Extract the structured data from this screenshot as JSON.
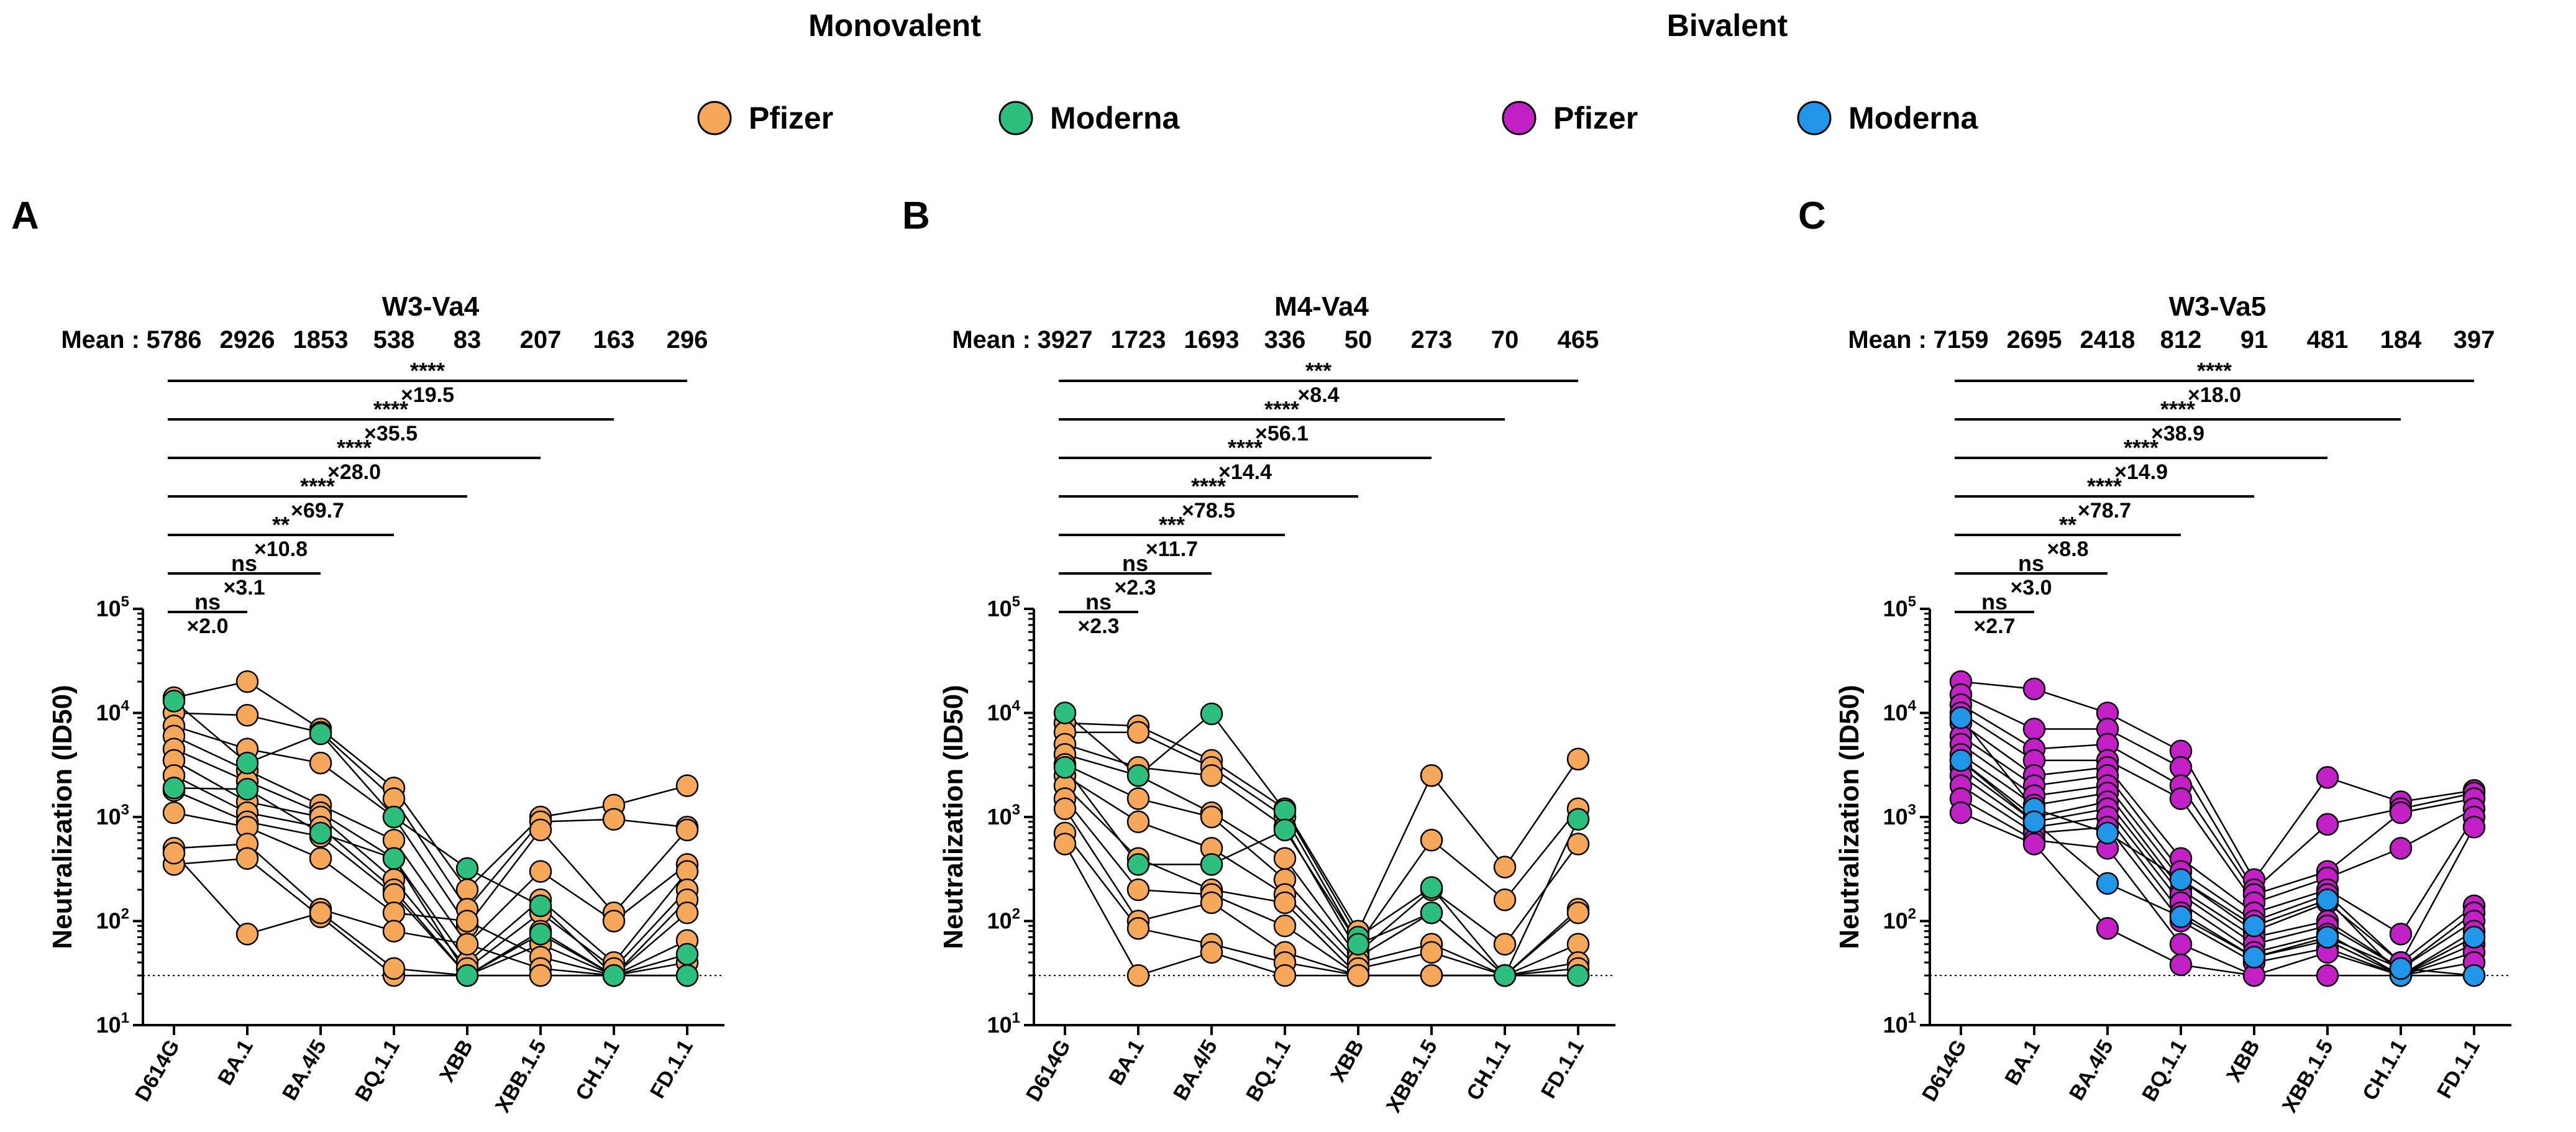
{
  "figure": {
    "group_headers": [
      "Monovalent",
      "Bivalent"
    ],
    "legend": [
      {
        "label": "Pfizer",
        "group": "Monovalent",
        "color": "#f6a85a"
      },
      {
        "label": "Moderna",
        "group": "Monovalent",
        "color": "#2dbf7d"
      },
      {
        "label": "Pfizer",
        "group": "Bivalent",
        "color": "#c21fc6"
      },
      {
        "label": "Moderna",
        "group": "Bivalent",
        "color": "#2196e8"
      }
    ],
    "mean_label": "Mean :"
  },
  "chart_data": [
    {
      "type": "scatter",
      "panel": "A",
      "title": "W3-Va4",
      "ylabel": "Neutralization (ID50)",
      "yscale": "log",
      "ylim": [
        10,
        100000
      ],
      "yticks": [
        "10^1",
        "10^2",
        "10^3",
        "10^4",
        "10^5"
      ],
      "threshold": 30,
      "categories": [
        "D614G",
        "BA.1",
        "BA.4/5",
        "BQ.1.1",
        "XBB",
        "XBB.1.5",
        "CH.1.1",
        "FD.1.1"
      ],
      "means": [
        "5786",
        "2926",
        "1853",
        "538",
        "83",
        "207",
        "163",
        "296"
      ],
      "comparisons": [
        {
          "to": "BA.1",
          "sig": "ns",
          "fold": "×2.0"
        },
        {
          "to": "BA.4/5",
          "sig": "ns",
          "fold": "×3.1"
        },
        {
          "to": "BQ.1.1",
          "sig": "**",
          "fold": "×10.8"
        },
        {
          "to": "XBB",
          "sig": "****",
          "fold": "×69.7"
        },
        {
          "to": "XBB.1.5",
          "sig": "****",
          "fold": "×28.0"
        },
        {
          "to": "CH.1.1",
          "sig": "****",
          "fold": "×35.5"
        },
        {
          "to": "FD.1.1",
          "sig": "****",
          "fold": "×19.5"
        }
      ],
      "series": [
        {
          "name": "Pfizer",
          "color": "#f6a85a",
          "subjects": [
            [
              14000,
              20000,
              7000,
              1900,
              200,
              1000,
              1300,
              2000
            ],
            [
              10000,
              9500,
              6500,
              1500,
              130,
              900,
              950,
              800
            ],
            [
              7500,
              4500,
              3300,
              1000,
              90,
              750,
              120,
              750
            ],
            [
              6000,
              2800,
              1300,
              600,
              60,
              300,
              100,
              350
            ],
            [
              4500,
              2200,
              1100,
              400,
              40,
              160,
              40,
              300
            ],
            [
              3500,
              1400,
              1000,
              250,
              35,
              120,
              35,
              200
            ],
            [
              2500,
              1100,
              800,
              200,
              30,
              80,
              30,
              160
            ],
            [
              1800,
              900,
              650,
              180,
              30,
              60,
              30,
              120
            ],
            [
              1100,
              800,
              400,
              120,
              100,
              45,
              30,
              65
            ],
            [
              500,
              550,
              130,
              80,
              60,
              35,
              30,
              40
            ],
            [
              350,
              400,
              110,
              30,
              30,
              30,
              30,
              30
            ],
            [
              450,
              75,
              120,
              35,
              30,
              30,
              30,
              30
            ]
          ]
        },
        {
          "name": "Moderna",
          "color": "#2dbf7d",
          "subjects": [
            [
              13000,
              3300,
              6300,
              1000,
              320,
              140,
              30,
              48
            ],
            [
              1900,
              1850,
              700,
              400,
              30,
              75,
              30,
              30
            ]
          ]
        }
      ]
    },
    {
      "type": "scatter",
      "panel": "B",
      "title": "M4-Va4",
      "ylabel": "Neutralization (ID50)",
      "yscale": "log",
      "ylim": [
        10,
        100000
      ],
      "yticks": [
        "10^1",
        "10^2",
        "10^3",
        "10^4",
        "10^5"
      ],
      "threshold": 30,
      "categories": [
        "D614G",
        "BA.1",
        "BA.4/5",
        "BQ.1.1",
        "XBB",
        "XBB.1.5",
        "CH.1.1",
        "FD.1.1"
      ],
      "means": [
        "3927",
        "1723",
        "1693",
        "336",
        "50",
        "273",
        "70",
        "465"
      ],
      "comparisons": [
        {
          "to": "BA.1",
          "sig": "ns",
          "fold": "×2.3"
        },
        {
          "to": "BA.4/5",
          "sig": "ns",
          "fold": "×2.3"
        },
        {
          "to": "BQ.1.1",
          "sig": "***",
          "fold": "×11.7"
        },
        {
          "to": "XBB",
          "sig": "****",
          "fold": "×78.5"
        },
        {
          "to": "XBB.1.5",
          "sig": "****",
          "fold": "×14.4"
        },
        {
          "to": "CH.1.1",
          "sig": "****",
          "fold": "×56.1"
        },
        {
          "to": "FD.1.1",
          "sig": "***",
          "fold": "×8.4"
        }
      ],
      "series": [
        {
          "name": "Pfizer",
          "color": "#f6a85a",
          "subjects": [
            [
              8000,
              7500,
              3500,
              1200,
              80,
              2500,
              330,
              3600
            ],
            [
              6500,
              6500,
              3000,
              1000,
              60,
              600,
              160,
              1200
            ],
            [
              5000,
              3000,
              2500,
              800,
              50,
              200,
              60,
              550
            ],
            [
              4000,
              2500,
              1100,
              400,
              45,
              120,
              30,
              130
            ],
            [
              3200,
              1500,
              1000,
              250,
              40,
              60,
              30,
              120
            ],
            [
              2500,
              900,
              500,
              180,
              35,
              50,
              30,
              60
            ],
            [
              2000,
              400,
              200,
              150,
              30,
              30,
              30,
              40
            ],
            [
              1500,
              200,
              180,
              90,
              30,
              30,
              30,
              35
            ],
            [
              1200,
              100,
              150,
              50,
              30,
              30,
              30,
              30
            ],
            [
              700,
              85,
              60,
              40,
              30,
              30,
              30,
              30
            ],
            [
              550,
              30,
              50,
              30,
              30,
              30,
              30,
              30
            ]
          ]
        },
        {
          "name": "Moderna",
          "color": "#2dbf7d",
          "subjects": [
            [
              10000,
              2500,
              9800,
              1150,
              70,
              210,
              30,
              950
            ],
            [
              3000,
              350,
              350,
              750,
              60,
              120,
              30,
              30
            ]
          ]
        }
      ]
    },
    {
      "type": "scatter",
      "panel": "C",
      "title": "W3-Va5",
      "ylabel": "Neutralization (ID50)",
      "yscale": "log",
      "ylim": [
        10,
        100000
      ],
      "yticks": [
        "10^1",
        "10^2",
        "10^3",
        "10^4",
        "10^5"
      ],
      "threshold": 30,
      "categories": [
        "D614G",
        "BA.1",
        "BA.4/5",
        "BQ.1.1",
        "XBB",
        "XBB.1.5",
        "CH.1.1",
        "FD.1.1"
      ],
      "means": [
        "7159",
        "2695",
        "2418",
        "812",
        "91",
        "481",
        "184",
        "397"
      ],
      "comparisons": [
        {
          "to": "BA.1",
          "sig": "ns",
          "fold": "×2.7"
        },
        {
          "to": "BA.4/5",
          "sig": "ns",
          "fold": "×3.0"
        },
        {
          "to": "BQ.1.1",
          "sig": "**",
          "fold": "×8.8"
        },
        {
          "to": "XBB",
          "sig": "****",
          "fold": "×78.7"
        },
        {
          "to": "XBB.1.5",
          "sig": "****",
          "fold": "×14.9"
        },
        {
          "to": "CH.1.1",
          "sig": "****",
          "fold": "×38.9"
        },
        {
          "to": "FD.1.1",
          "sig": "****",
          "fold": "×18.0"
        }
      ],
      "series": [
        {
          "name": "Pfizer",
          "color": "#c21fc6",
          "subjects": [
            [
              20000,
              17000,
              10000,
              4300,
              250,
              2400,
              1400,
              1800
            ],
            [
              15000,
              7000,
              7000,
              3000,
              200,
              850,
              1200,
              1700
            ],
            [
              12000,
              4500,
              5000,
              2000,
              180,
              300,
              1100,
              1500
            ],
            [
              10000,
              3500,
              3500,
              1500,
              150,
              260,
              500,
              1200
            ],
            [
              8000,
              2500,
              3000,
              400,
              120,
              200,
              75,
              1000
            ],
            [
              6000,
              2000,
              2500,
              300,
              100,
              180,
              40,
              800
            ],
            [
              5000,
              1600,
              2000,
              250,
              80,
              150,
              40,
              140
            ],
            [
              4000,
              1300,
              1700,
              200,
              70,
              100,
              35,
              120
            ],
            [
              3500,
              1000,
              1400,
              180,
              60,
              90,
              35,
              100
            ],
            [
              3000,
              900,
              1200,
              150,
              50,
              75,
              30,
              80
            ],
            [
              2500,
              800,
              1000,
              120,
              45,
              65,
              30,
              60
            ],
            [
              2000,
              700,
              800,
              100,
              40,
              55,
              30,
              50
            ],
            [
              1500,
              600,
              500,
              60,
              30,
              50,
              30,
              40
            ],
            [
              1100,
              550,
              85,
              38,
              30,
              30,
              30,
              30
            ]
          ]
        },
        {
          "name": "Moderna",
          "color": "#2196e8",
          "subjects": [
            [
              9000,
              1200,
              700,
              250,
              90,
              160,
              30,
              70
            ],
            [
              3500,
              900,
              230,
              110,
              45,
              70,
              35,
              30
            ]
          ]
        }
      ]
    }
  ]
}
